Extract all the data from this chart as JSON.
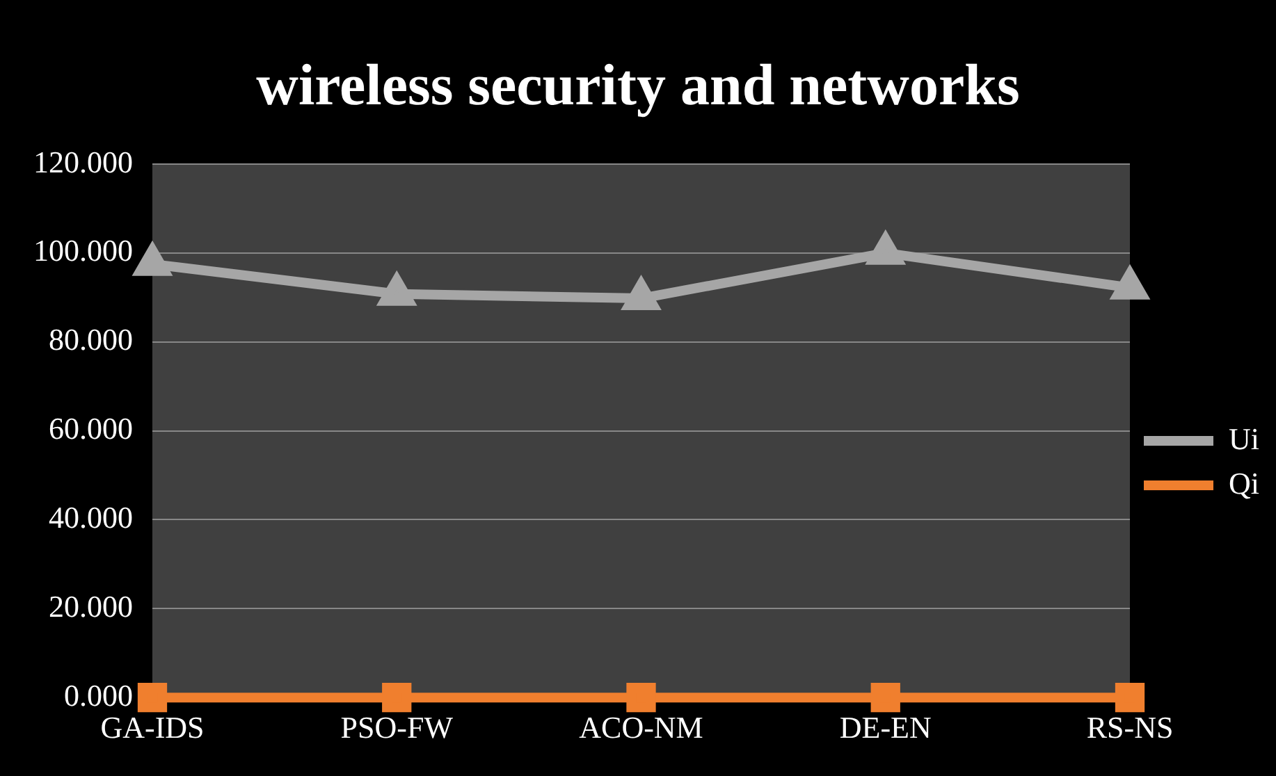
{
  "chart_data": {
    "type": "line",
    "title": "wireless security and networks",
    "categories": [
      "GA-IDS",
      "PSO-FW",
      "ACO-NM",
      "DE-EN",
      "RS-NS"
    ],
    "series": [
      {
        "name": "Ui",
        "color": "#a6a6a6",
        "marker": "triangle",
        "values": [
          97.5,
          90.8,
          89.8,
          100,
          92.2
        ]
      },
      {
        "name": "Qi",
        "color": "#f07f2e",
        "marker": "square",
        "values": [
          0,
          0,
          0,
          0,
          0
        ]
      }
    ],
    "ylim": [
      0,
      120
    ],
    "yticks": [
      {
        "value": 0,
        "label": "0.000"
      },
      {
        "value": 20,
        "label": "20.000"
      },
      {
        "value": 40,
        "label": "40.000"
      },
      {
        "value": 60,
        "label": "60.000"
      },
      {
        "value": 80,
        "label": "80.000"
      },
      {
        "value": 100,
        "label": "100.000"
      },
      {
        "value": 120,
        "label": "120.000"
      }
    ],
    "grid": "y",
    "legend": "right"
  }
}
